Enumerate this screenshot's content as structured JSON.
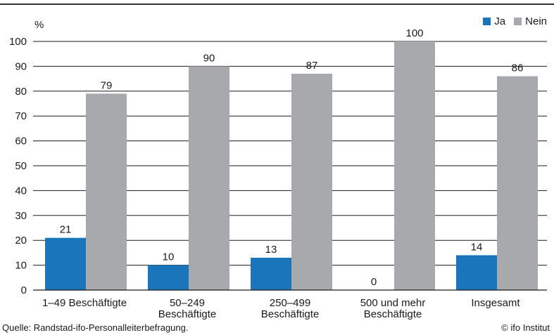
{
  "chart_data": {
    "type": "bar",
    "unit_label": "%",
    "categories": [
      [
        "1–49 Beschäftigte"
      ],
      [
        "50–249",
        "Beschäftigte"
      ],
      [
        "250–499",
        "Beschäftigte"
      ],
      [
        "500 und mehr",
        "Beschäftigte"
      ],
      [
        "Insgesamt"
      ]
    ],
    "series": [
      {
        "name": "Ja",
        "color": "#1b75bb",
        "values": [
          21,
          10,
          13,
          0,
          14
        ]
      },
      {
        "name": "Nein",
        "color": "#a7a9ac",
        "values": [
          79,
          90,
          87,
          100,
          86
        ]
      }
    ],
    "ylim": [
      0,
      100
    ],
    "yticks": [
      0,
      10,
      20,
      30,
      40,
      50,
      60,
      70,
      80,
      90,
      100
    ],
    "grid": true,
    "legend_position": "top-right"
  },
  "footer": {
    "source": "Quelle: Randstad-ifo-Personalleiterbefragung.",
    "copyright": "© ifo Institut"
  }
}
